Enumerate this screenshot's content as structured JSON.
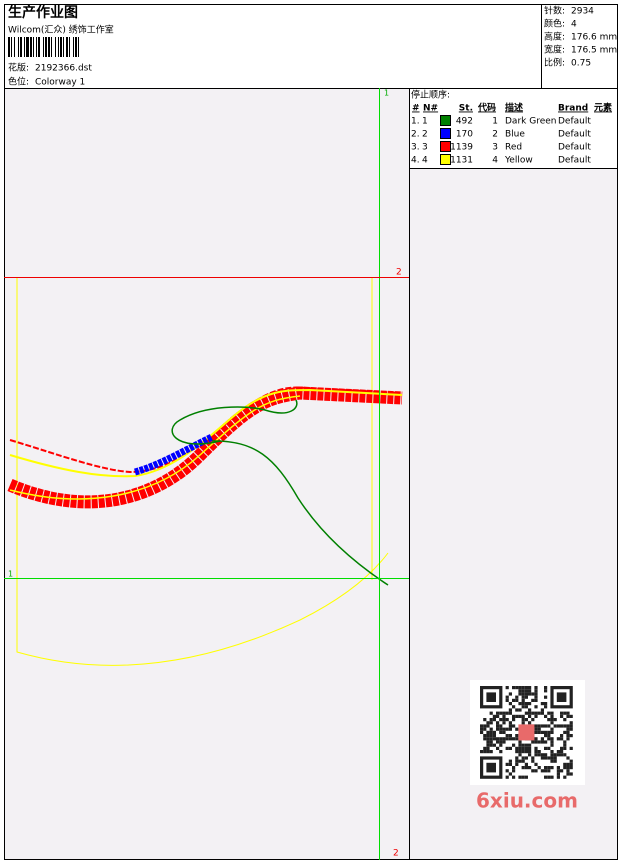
{
  "header": {
    "title": "生产作业图",
    "studio": "Wilcom(汇众) 绣饰工作室",
    "design_label": "花版:",
    "design": "2192366.dst",
    "colorway_label": "色位:",
    "colorway": "Colorway 1"
  },
  "info": [
    {
      "label": "针数:",
      "value": "2934"
    },
    {
      "label": "颜色:",
      "value": "4"
    },
    {
      "label": "高度:",
      "value": "176.6 mm"
    },
    {
      "label": "宽度:",
      "value": "176.5 mm"
    },
    {
      "label": "比例:",
      "value": "0.75"
    }
  ],
  "stop_sequence": {
    "title": "停止顺序:",
    "columns": [
      "#",
      "N#",
      "St.",
      "代码",
      "描述",
      "Brand",
      "元素"
    ],
    "rows": [
      {
        "index": "1.",
        "n": "1",
        "color": "#008000",
        "stitches": "492",
        "code": "1",
        "description": "Dark Green",
        "brand": "Default"
      },
      {
        "index": "2.",
        "n": "2",
        "color": "#0000ff",
        "stitches": "170",
        "code": "2",
        "description": "Blue",
        "brand": "Default"
      },
      {
        "index": "3.",
        "n": "3",
        "color": "#ff0000",
        "stitches": "1139",
        "code": "3",
        "description": "Red",
        "brand": "Default"
      },
      {
        "index": "4.",
        "n": "4",
        "color": "#ffff00",
        "stitches": "1131",
        "code": "4",
        "description": "Yellow",
        "brand": "Default"
      }
    ]
  },
  "guide_labels": [
    "1",
    "2",
    "1",
    "2"
  ],
  "watermark": "6xiu.com"
}
